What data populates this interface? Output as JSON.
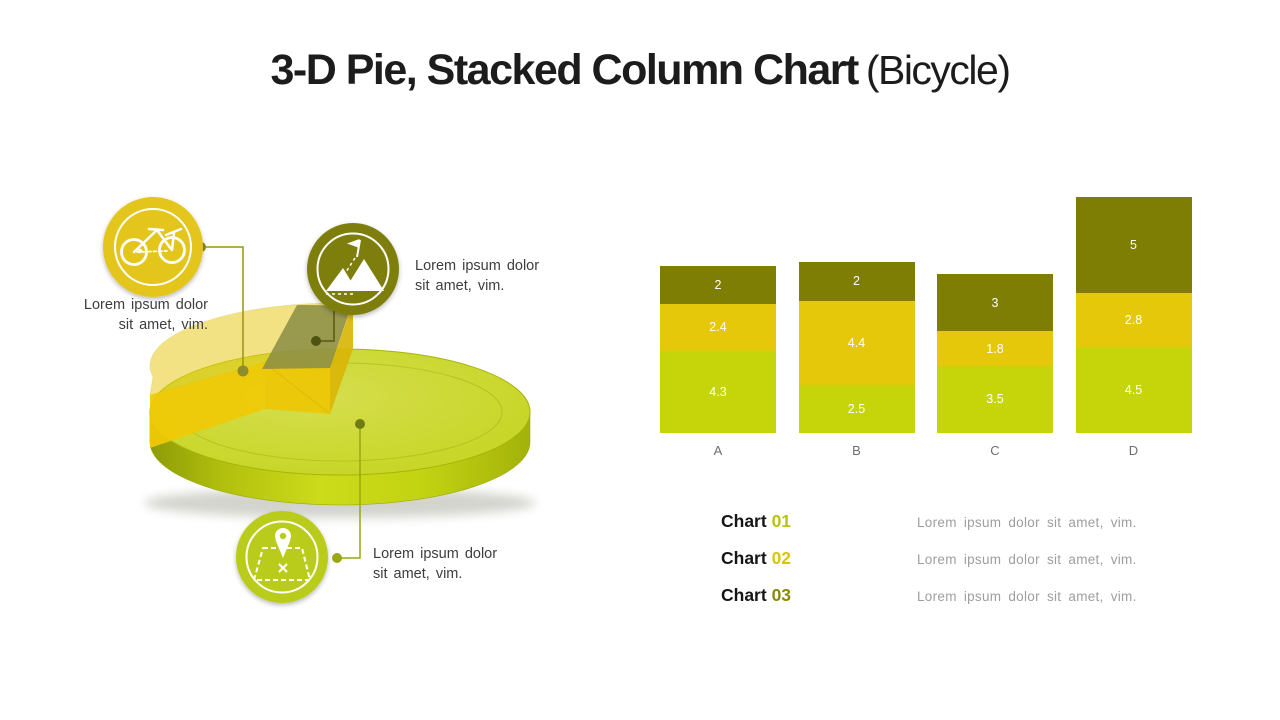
{
  "title": {
    "main": "3-D Pie, Stacked Column Chart",
    "suffix": "(Bicycle)"
  },
  "callouts": {
    "bicycle": {
      "icon": "bicycle-icon",
      "circle_color": "#e4c51d",
      "line1": "Lorem ipsum dolor",
      "line2": "sit amet, vim."
    },
    "mountain": {
      "icon": "mountain-flag-icon",
      "circle_color": "#7e7e0f",
      "line1": "Lorem ipsum dolor",
      "line2": "sit amet, vim."
    },
    "location": {
      "icon": "map-pin-icon",
      "circle_color": "#b9cc1b",
      "line1": "Lorem ipsum dolor",
      "line2": "sit amet, vim."
    }
  },
  "chart_data": [
    {
      "type": "pie",
      "style": "3d-exploded-cylinder",
      "title": "",
      "slices": [
        {
          "label": "pie-body",
          "color": "#c7d62a",
          "share_est": 0.62
        },
        {
          "label": "exploded-yellow-wedge",
          "color": "#eec606",
          "share_est": 0.28
        },
        {
          "label": "olive-wedge",
          "color": "#8b8d45",
          "share_est": 0.1
        }
      ]
    },
    {
      "type": "bar",
      "stacked": true,
      "title": "",
      "xlabel": "",
      "ylabel": "",
      "grid": false,
      "value_labels": true,
      "value_label_color": "#ffffff",
      "ylim": [
        0,
        12.3
      ],
      "categories": [
        "A",
        "B",
        "C",
        "D"
      ],
      "series": [
        {
          "name": "Chart 01",
          "color": "#c5d50a",
          "values": [
            4.3,
            2.5,
            3.5,
            4.5
          ]
        },
        {
          "name": "Chart 02",
          "color": "#e5c80a",
          "values": [
            2.4,
            4.4,
            1.8,
            2.8
          ]
        },
        {
          "name": "Chart 03",
          "color": "#7e7d04",
          "values": [
            2,
            2,
            3,
            5
          ]
        }
      ]
    }
  ],
  "legend": {
    "items": [
      {
        "label": "Chart",
        "number": "01",
        "number_color": "#b7c50e",
        "desc": "Lorem ipsum dolor sit amet, vim."
      },
      {
        "label": "Chart",
        "number": "02",
        "number_color": "#dcc30b",
        "desc": "Lorem ipsum dolor sit amet, vim."
      },
      {
        "label": "Chart",
        "number": "03",
        "number_color": "#8a8a05",
        "desc": "Lorem ipsum dolor sit amet, vim."
      }
    ]
  }
}
